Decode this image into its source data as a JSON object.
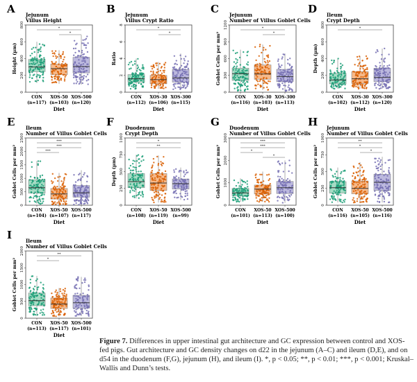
{
  "groups_colors": {
    "CON": {
      "point": "#1b9e77",
      "fill": "#a6dcc5"
    },
    "XOS-50": {
      "point": "#d95f02",
      "fill": "#f6b98a"
    },
    "XOS-500": {
      "point": "#7570b3",
      "fill": "#bcb9de"
    }
  },
  "chart_data": [
    {
      "panel": "A",
      "type": "box",
      "title": [
        "Jejunum",
        "Villus Height"
      ],
      "ylabel": "Height (µm)",
      "xlabel": "Diet",
      "yticks": [
        0,
        200,
        400,
        600,
        800
      ],
      "ylim": [
        0,
        800
      ],
      "categories": [
        "CON",
        "XOS-50",
        "XOS-500"
      ],
      "n": [
        "(n=117)",
        "(n=103)",
        "(n=120)"
      ],
      "boxes": [
        [
          110,
          245,
          300,
          390,
          600
        ],
        [
          100,
          210,
          280,
          335,
          500
        ],
        [
          90,
          230,
          305,
          415,
          680
        ]
      ],
      "significance": [
        {
          "from": 0,
          "to": 2,
          "label": "*"
        },
        {
          "from": 1,
          "to": 2,
          "label": "*"
        }
      ]
    },
    {
      "panel": "B",
      "type": "box",
      "title": [
        "Jejunum",
        "Villus Crypt Ratio"
      ],
      "ylabel": "Ratio",
      "xlabel": "Diet",
      "yticks": [
        0,
        2,
        4,
        6,
        8
      ],
      "ylim": [
        0,
        8
      ],
      "categories": [
        "CON",
        "XOS-30",
        "XOS-300"
      ],
      "n": [
        "(n=112)",
        "(n=106)",
        "(n=115)"
      ],
      "boxes": [
        [
          0.4,
          1.2,
          1.6,
          2.1,
          4.0
        ],
        [
          0.4,
          1.0,
          1.5,
          2.0,
          3.6
        ],
        [
          0.3,
          1.2,
          1.7,
          2.7,
          4.6
        ]
      ],
      "significance": [
        {
          "from": 0,
          "to": 2,
          "label": "*"
        },
        {
          "from": 1,
          "to": 2,
          "label": "*"
        }
      ]
    },
    {
      "panel": "C",
      "type": "box",
      "title": [
        "Jejunum",
        "Number of Villus Goblet Cells"
      ],
      "ylabel": "Goblet Cells per mm²",
      "xlabel": "Diet",
      "yticks": [
        0,
        300,
        600,
        900,
        1200
      ],
      "ylim": [
        0,
        1200
      ],
      "categories": [
        "CON",
        "XOS-30",
        "XOS-300"
      ],
      "n": [
        "(n=116)",
        "(n=103)",
        "(n=113)"
      ],
      "boxes": [
        [
          20,
          210,
          330,
          430,
          760
        ],
        [
          40,
          230,
          325,
          487,
          850
        ],
        [
          20,
          187,
          280,
          408,
          690
        ]
      ],
      "significance": [
        {
          "from": 0,
          "to": 2,
          "label": "*"
        },
        {
          "from": 1,
          "to": 2,
          "label": "*"
        }
      ]
    },
    {
      "panel": "D",
      "type": "box",
      "title": [
        "Ileum",
        "Crypt Depth"
      ],
      "ylabel": "Depth (µm)",
      "xlabel": "Diet",
      "yticks": [
        0,
        200,
        400,
        600,
        800
      ],
      "ylim": [
        0,
        800
      ],
      "categories": [
        "CON",
        "XOS-30",
        "XOS-300"
      ],
      "n": [
        "(n=102)",
        "(n=112)",
        "(n=120)"
      ],
      "boxes": [
        [
          40,
          100,
          145,
          225,
          400
        ],
        [
          40,
          105,
          160,
          245,
          430
        ],
        [
          40,
          125,
          175,
          285,
          520
        ]
      ],
      "significance": [
        {
          "from": 0,
          "to": 2,
          "label": "*"
        }
      ]
    },
    {
      "panel": "E",
      "type": "box",
      "title": [
        "Ileum",
        "Number of Villus Goblet Cells"
      ],
      "ylabel": "Goblet Cells per mm²",
      "xlabel": "Diet",
      "yticks": [
        0,
        500,
        1000,
        1500,
        2000,
        2500
      ],
      "ylim": [
        0,
        2500
      ],
      "categories": [
        "CON",
        "XOS-50",
        "XOS-500"
      ],
      "n": [
        "(n=104)",
        "(n=107)",
        "(n=117)"
      ],
      "boxes": [
        [
          50,
          450,
          650,
          950,
          1650
        ],
        [
          20,
          230,
          420,
          620,
          1200
        ],
        [
          20,
          300,
          460,
          730,
          1300
        ]
      ],
      "significance": [
        {
          "from": 0,
          "to": 2,
          "label": "***"
        },
        {
          "from": 0,
          "to": 2,
          "label": "***"
        },
        {
          "from": 0,
          "to": 1,
          "label": "***"
        }
      ]
    },
    {
      "panel": "F",
      "type": "box",
      "title": [
        "Duodenum",
        "Crypt Depth"
      ],
      "ylabel": "Depth (µm)",
      "xlabel": "Diet",
      "yticks": [
        0,
        250,
        500,
        750,
        1000
      ],
      "ylim": [
        0,
        1000
      ],
      "categories": [
        "CON",
        "XOS-50",
        "XOS-500"
      ],
      "n": [
        "(n=108)",
        "(n=119)",
        "(n=99)"
      ],
      "boxes": [
        [
          100,
          260,
          350,
          470,
          750
        ],
        [
          40,
          220,
          330,
          470,
          740
        ],
        [
          80,
          240,
          320,
          390,
          560
        ]
      ],
      "significance": [
        {
          "from": 0,
          "to": 2,
          "label": "*"
        },
        {
          "from": 0,
          "to": 2,
          "label": "**"
        }
      ]
    },
    {
      "panel": "G",
      "type": "box",
      "title": [
        "Duodenum",
        "Number of Villus Goblet Cells"
      ],
      "ylabel": "Goblet Cells per mm²",
      "xlabel": "Diet",
      "yticks": [
        0,
        1000,
        2000,
        3000
      ],
      "ylim": [
        0,
        3000
      ],
      "categories": [
        "CON",
        "XOS-50",
        "XOS-500"
      ],
      "n": [
        "(n=101)",
        "(n=113)",
        "(n=100)"
      ],
      "boxes": [
        [
          150,
          420,
          550,
          750,
          1200
        ],
        [
          150,
          500,
          720,
          900,
          1500
        ],
        [
          100,
          520,
          780,
          1060,
          2000
        ]
      ],
      "significance": [
        {
          "from": 0,
          "to": 2,
          "label": "***"
        },
        {
          "from": 0,
          "to": 2,
          "label": "***"
        },
        {
          "from": 0,
          "to": 1,
          "label": "*"
        },
        {
          "from": 1,
          "to": 2,
          "label": "*"
        }
      ]
    },
    {
      "panel": "H",
      "type": "box",
      "title": [
        "Jejunum",
        "Number of Villus Goblet Cells"
      ],
      "ylabel": "Goblet Cells per mm²",
      "xlabel": "Diet",
      "yticks": [
        0,
        250,
        500,
        750,
        1000
      ],
      "ylim": [
        0,
        1000
      ],
      "categories": [
        "CON",
        "XOS-50",
        "XOS-500"
      ],
      "n": [
        "(n=116)",
        "(n=105)",
        "(n=116)"
      ],
      "boxes": [
        [
          40,
          180,
          260,
          350,
          560
        ],
        [
          30,
          170,
          250,
          360,
          640
        ],
        [
          40,
          220,
          340,
          460,
          720
        ]
      ],
      "significance": [
        {
          "from": 0,
          "to": 2,
          "label": "**"
        },
        {
          "from": 0,
          "to": 2,
          "label": "*"
        },
        {
          "from": 1,
          "to": 2,
          "label": "*"
        }
      ]
    },
    {
      "panel": "I",
      "type": "box",
      "title": [
        "Ileum",
        "Number of Villus Goblet Cells"
      ],
      "ylabel": "Goblet Cells per mm²",
      "xlabel": "Diet",
      "yticks": [
        0,
        500,
        1000,
        1500,
        2000
      ],
      "ylim": [
        0,
        2000
      ],
      "categories": [
        "CON",
        "XOS-50",
        "XOS-500"
      ],
      "n": [
        "(n=113)",
        "(n=117)",
        "(n=101)"
      ],
      "boxes": [
        [
          60,
          370,
          520,
          750,
          1260
        ],
        [
          50,
          290,
          420,
          600,
          900
        ],
        [
          60,
          300,
          460,
          680,
          1230
        ]
      ],
      "significance": [
        {
          "from": 0,
          "to": 2,
          "label": "**"
        },
        {
          "from": 0,
          "to": 1,
          "label": "*"
        }
      ]
    }
  ],
  "caption": {
    "label": "Figure 7.",
    "text": " Differences in upper intestinal gut architecture and GC expression between control and XOS-fed pigs. Gut architecture and GC density changes on d22 in the jejunum (A–C) and ileum (D,E), and on d54 in the duodenum (F,G), jejunum (H), and ileum (I). *, p < 0.05; **, p < 0.01; ***, p < 0.001; Kruskal–Wallis and Dunn’s tests."
  }
}
